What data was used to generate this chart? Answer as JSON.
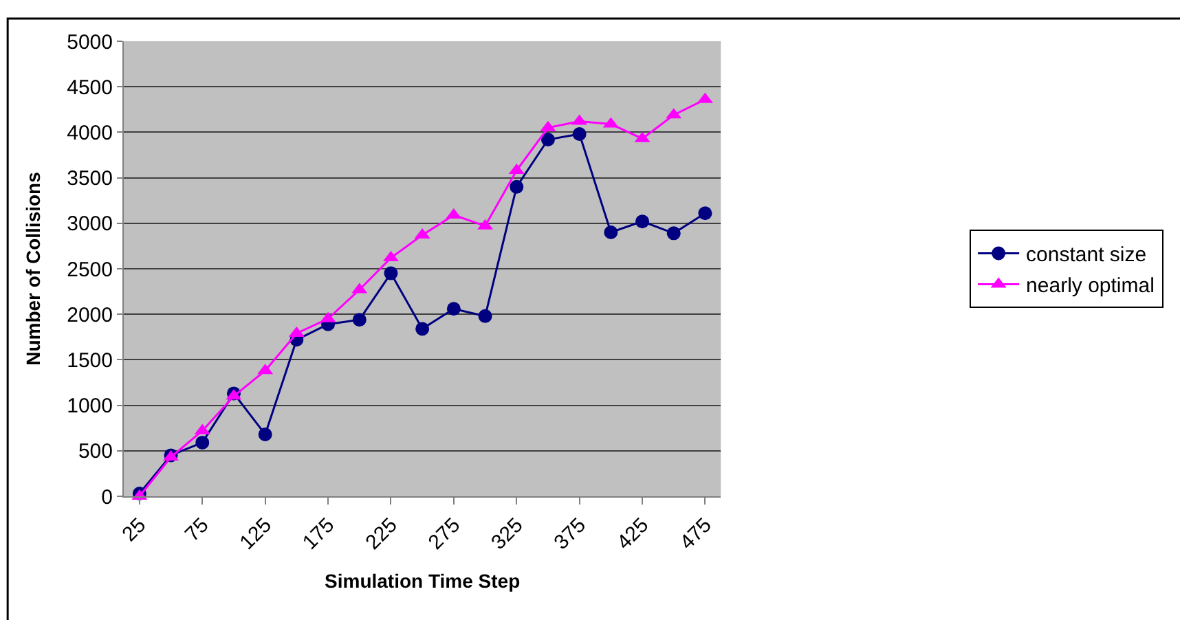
{
  "chart_data": {
    "type": "line",
    "xlabel": "Simulation Time Step",
    "ylabel": "Number of Collisions",
    "categories": [
      "25",
      null,
      "75",
      null,
      "125",
      null,
      "175",
      null,
      "225",
      null,
      "275",
      null,
      "325",
      null,
      "375",
      null,
      "425",
      null,
      "475"
    ],
    "series": [
      {
        "name": "constant size",
        "color": "#000080",
        "marker": "circle",
        "values": [
          30,
          450,
          590,
          1130,
          680,
          1720,
          1890,
          1940,
          2450,
          1840,
          2060,
          1980,
          3400,
          3920,
          3980,
          2900,
          3020,
          2890,
          3110
        ]
      },
      {
        "name": "nearly optimal",
        "color": "#ff00ff",
        "marker": "triangle",
        "values": [
          0,
          430,
          720,
          1100,
          1380,
          1790,
          1950,
          2270,
          2620,
          2870,
          3090,
          2970,
          3580,
          4050,
          4120,
          4090,
          3930,
          4190,
          4360
        ]
      }
    ],
    "ylim": [
      0,
      5000
    ],
    "yticks": [
      0,
      500,
      1000,
      1500,
      2000,
      2500,
      3000,
      3500,
      4000,
      4500,
      5000
    ],
    "grid": "y",
    "legend": "right",
    "line_style": "solid"
  }
}
